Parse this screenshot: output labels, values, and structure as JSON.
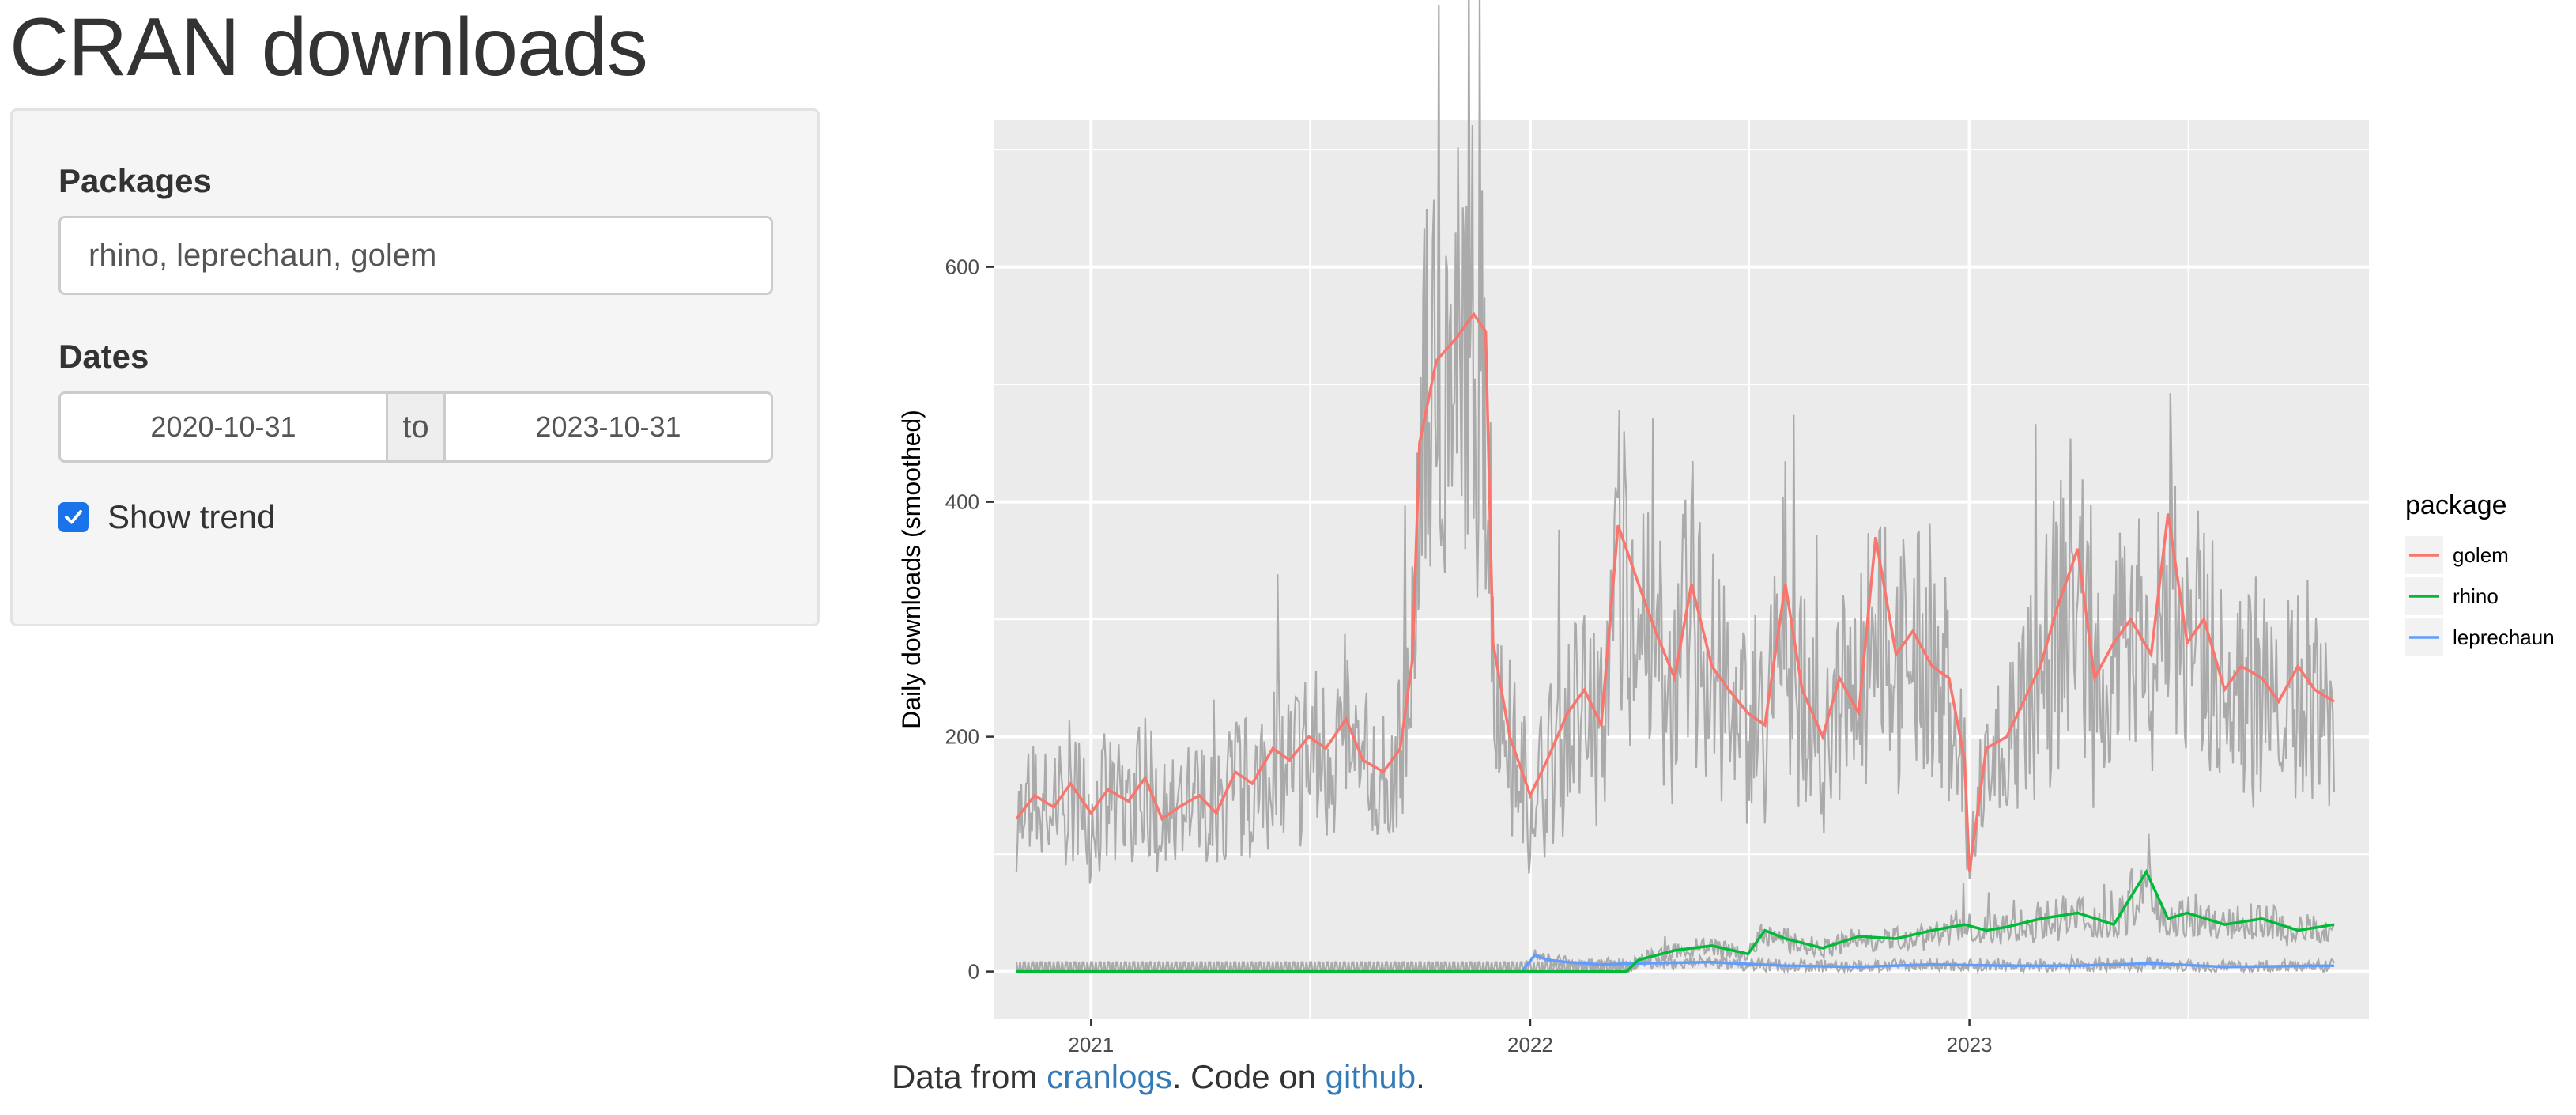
{
  "page_title": "CRAN downloads",
  "sidebar": {
    "packages_label": "Packages",
    "packages_value": "rhino, leprechaun, golem",
    "dates_label": "Dates",
    "date_start": "2020-10-31",
    "date_sep": "to",
    "date_end": "2023-10-31",
    "show_trend_label": "Show trend",
    "show_trend_checked": true
  },
  "footer": {
    "prefix": "Data from ",
    "cranlogs_link": "cranlogs",
    "middle": ". Code on ",
    "github_link": "github",
    "suffix": "."
  },
  "colors": {
    "golem": "#F8766D",
    "rhino": "#00BA38",
    "leprechaun": "#619CFF",
    "raw": "#aaaaaa",
    "panel_bg": "#EBEBEB",
    "link": "#337ab7",
    "checkbox": "#1a73e8"
  },
  "chart_data": {
    "type": "line",
    "ylabel": "Daily downloads (smoothed)",
    "xlabel": "",
    "ylim": [
      -40,
      725
    ],
    "xlim": [
      "2020-10-12",
      "2023-11-29"
    ],
    "x_ticks": [
      "2021",
      "2022",
      "2023"
    ],
    "y_ticks": [
      0,
      200,
      400,
      600
    ],
    "grid": true,
    "legend": {
      "title": "package",
      "position": "right",
      "entries": [
        "golem",
        "rhino",
        "leprechaun"
      ]
    },
    "series": [
      {
        "name": "golem",
        "x": [
          "2020-10-31",
          "2020-11-15",
          "2020-12-01",
          "2020-12-15",
          "2021-01-01",
          "2021-01-15",
          "2021-02-01",
          "2021-02-15",
          "2021-03-01",
          "2021-03-15",
          "2021-04-01",
          "2021-04-15",
          "2021-05-01",
          "2021-05-15",
          "2021-06-01",
          "2021-06-15",
          "2021-07-01",
          "2021-07-15",
          "2021-08-01",
          "2021-08-15",
          "2021-09-01",
          "2021-09-15",
          "2021-09-25",
          "2021-10-01",
          "2021-10-15",
          "2021-11-01",
          "2021-11-15",
          "2021-11-25",
          "2021-12-01",
          "2021-12-15",
          "2022-01-01",
          "2022-01-15",
          "2022-02-01",
          "2022-02-15",
          "2022-03-01",
          "2022-03-15",
          "2022-04-01",
          "2022-04-15",
          "2022-05-01",
          "2022-05-15",
          "2022-06-01",
          "2022-06-15",
          "2022-07-01",
          "2022-07-15",
          "2022-08-01",
          "2022-08-15",
          "2022-09-01",
          "2022-09-15",
          "2022-10-01",
          "2022-10-15",
          "2022-11-01",
          "2022-11-15",
          "2022-12-01",
          "2022-12-15",
          "2022-12-28",
          "2023-01-01",
          "2023-01-15",
          "2023-02-01",
          "2023-02-15",
          "2023-03-01",
          "2023-03-15",
          "2023-04-01",
          "2023-04-15",
          "2023-05-01",
          "2023-05-15",
          "2023-06-01",
          "2023-06-15",
          "2023-07-01",
          "2023-07-15",
          "2023-08-01",
          "2023-08-15",
          "2023-09-01",
          "2023-09-15",
          "2023-10-01",
          "2023-10-15",
          "2023-10-31"
        ],
        "values": [
          130,
          150,
          140,
          160,
          135,
          155,
          145,
          165,
          130,
          140,
          150,
          135,
          170,
          160,
          190,
          180,
          200,
          190,
          215,
          180,
          170,
          190,
          265,
          450,
          520,
          540,
          560,
          545,
          280,
          200,
          150,
          180,
          220,
          240,
          210,
          380,
          330,
          290,
          250,
          330,
          260,
          240,
          220,
          210,
          330,
          240,
          200,
          250,
          220,
          370,
          270,
          290,
          260,
          250,
          180,
          85,
          190,
          200,
          230,
          260,
          310,
          360,
          250,
          280,
          300,
          270,
          390,
          280,
          300,
          240,
          260,
          250,
          230,
          260,
          240,
          230
        ]
      },
      {
        "name": "rhino",
        "x": [
          "2020-10-31",
          "2021-06-01",
          "2022-01-01",
          "2022-03-22",
          "2022-04-01",
          "2022-05-01",
          "2022-06-01",
          "2022-07-01",
          "2022-07-15",
          "2022-08-01",
          "2022-09-01",
          "2022-10-01",
          "2022-11-01",
          "2022-12-01",
          "2022-12-28",
          "2023-01-15",
          "2023-02-01",
          "2023-03-01",
          "2023-04-01",
          "2023-05-01",
          "2023-05-28",
          "2023-06-15",
          "2023-07-01",
          "2023-08-01",
          "2023-09-01",
          "2023-10-01",
          "2023-10-31"
        ],
        "values": [
          0,
          0,
          0,
          0,
          10,
          18,
          22,
          15,
          35,
          28,
          20,
          30,
          28,
          35,
          40,
          35,
          38,
          45,
          50,
          40,
          85,
          45,
          50,
          40,
          45,
          35,
          40
        ]
      },
      {
        "name": "leprechaun",
        "x": [
          "2020-10-31",
          "2021-06-01",
          "2021-12-25",
          "2022-01-05",
          "2022-01-15",
          "2022-02-01",
          "2022-03-01",
          "2022-04-01",
          "2022-06-01",
          "2022-08-01",
          "2022-10-01",
          "2022-12-01",
          "2023-02-01",
          "2023-04-01",
          "2023-06-01",
          "2023-08-01",
          "2023-10-31"
        ],
        "values": [
          0,
          0,
          0,
          14,
          10,
          8,
          6,
          7,
          8,
          5,
          4,
          6,
          5,
          5,
          7,
          4,
          5
        ]
      }
    ]
  }
}
